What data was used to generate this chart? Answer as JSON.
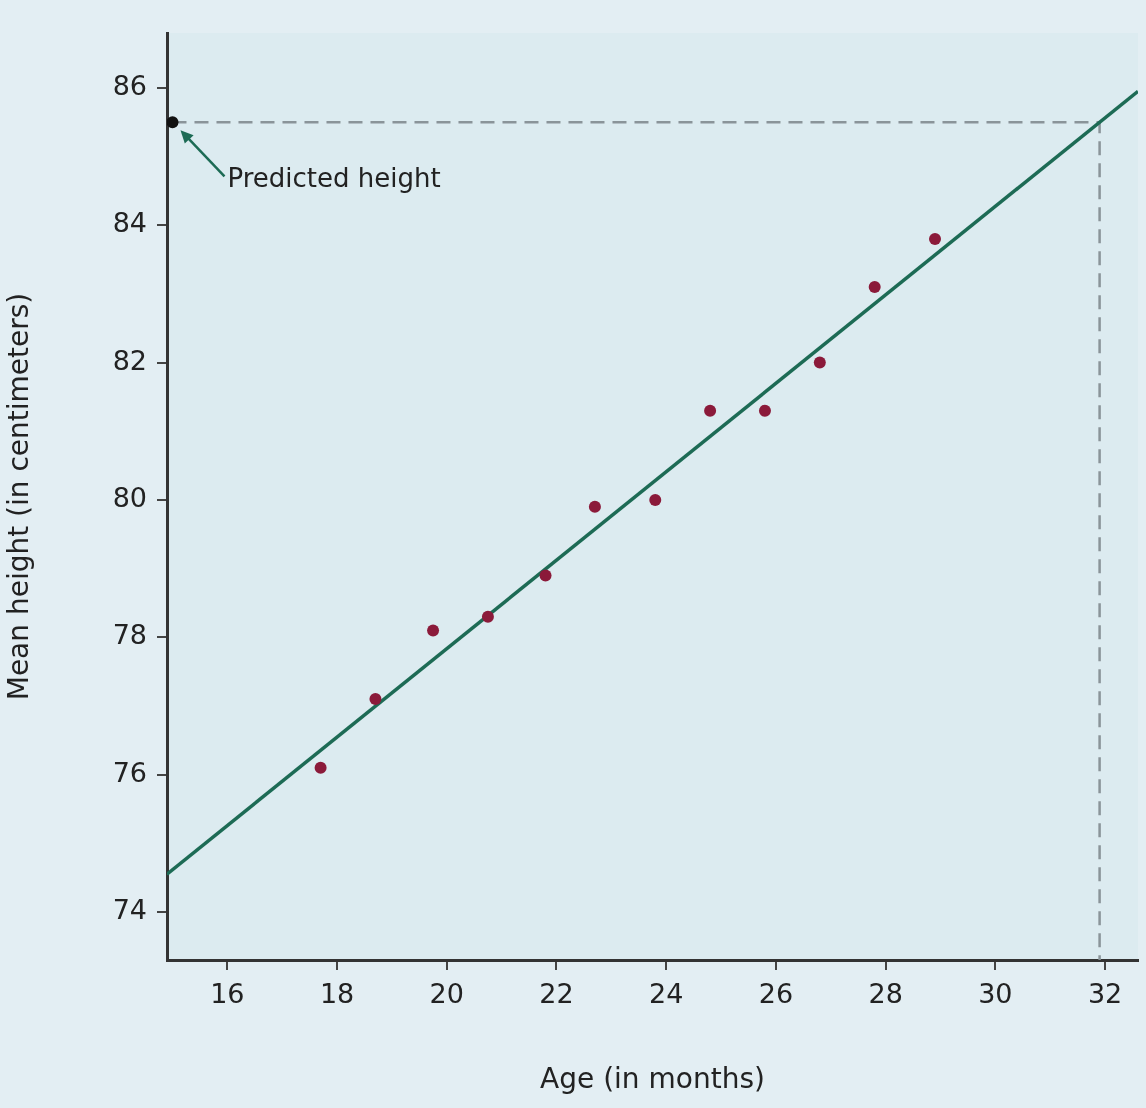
{
  "chart_data": {
    "type": "scatter",
    "xlabel": "Age (in months)",
    "ylabel": "Mean height (in centimeters)",
    "xlim": [
      14.9,
      32.6
    ],
    "ylim": [
      73.3,
      86.8
    ],
    "xticks": [
      16,
      18,
      20,
      22,
      24,
      26,
      28,
      30,
      32
    ],
    "yticks": [
      74,
      76,
      78,
      80,
      82,
      84,
      86
    ],
    "marker": "circle",
    "annotations": [
      {
        "text": "Predicted height",
        "x": 15,
        "y": 85.5
      }
    ],
    "series": [
      {
        "color": "#8b1a3a",
        "x": [
          17.7,
          18.7,
          19.75,
          20.75,
          21.8,
          22.7,
          23.8,
          24.8,
          25.8,
          26.8,
          27.8,
          28.9
        ],
        "values": [
          76.1,
          77.1,
          78.1,
          78.3,
          78.9,
          79.9,
          80.0,
          81.3,
          81.3,
          82.0,
          83.1,
          83.8
        ]
      },
      {
        "type": "line",
        "marker": "none",
        "color": "#1d6b55",
        "x": [
          14.9,
          32.6
        ],
        "values": [
          74.55,
          85.95
        ]
      },
      {
        "type": "line",
        "marker": "none",
        "line_style": "dashed",
        "color": "#8a9499",
        "x": [
          15,
          31.9,
          31.9
        ],
        "values": [
          85.5,
          85.5,
          73.3
        ]
      },
      {
        "color": "#111111",
        "x": [
          15
        ],
        "values": [
          85.5
        ]
      }
    ]
  }
}
